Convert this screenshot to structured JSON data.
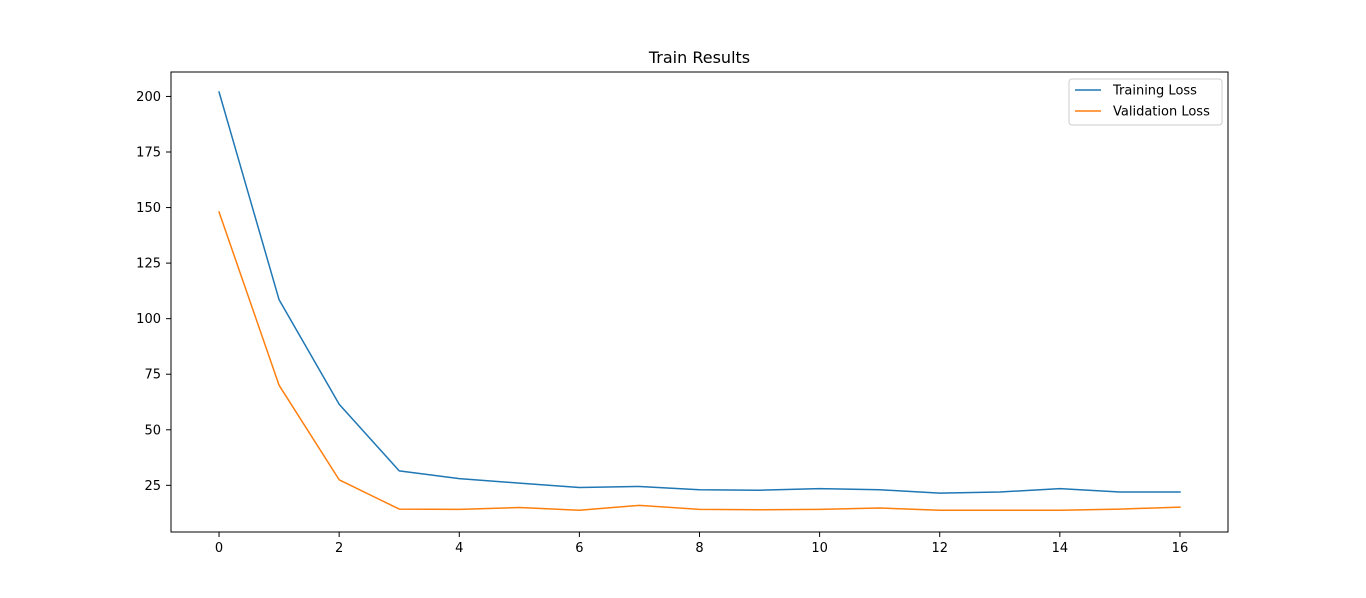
{
  "chart_data": {
    "type": "line",
    "title": "Train Results",
    "xlabel": "",
    "ylabel": "",
    "xlim": [
      -0.8,
      16.8
    ],
    "ylim": [
      4,
      211
    ],
    "grid": false,
    "legend_position": "top-right",
    "x": [
      0,
      1,
      2,
      3,
      4,
      5,
      6,
      7,
      8,
      9,
      10,
      11,
      12,
      13,
      14,
      15,
      16
    ],
    "xticks": [
      0,
      2,
      4,
      6,
      8,
      10,
      12,
      14,
      16
    ],
    "yticks": [
      25,
      50,
      75,
      100,
      125,
      150,
      175,
      200
    ],
    "series": [
      {
        "name": "Training Loss",
        "color": "#1f77b4",
        "values": [
          202,
          108.5,
          61.5,
          31.5,
          28,
          26,
          24,
          24.5,
          23,
          22.8,
          23.5,
          23,
          21.5,
          22,
          23.5,
          22,
          22
        ]
      },
      {
        "name": "Validation Loss",
        "color": "#ff7f0e",
        "values": [
          148,
          70,
          27.5,
          14.3,
          14.2,
          15,
          13.8,
          16,
          14.2,
          14,
          14.2,
          14.8,
          13.8,
          13.8,
          13.8,
          14.3,
          15.2
        ]
      }
    ]
  }
}
